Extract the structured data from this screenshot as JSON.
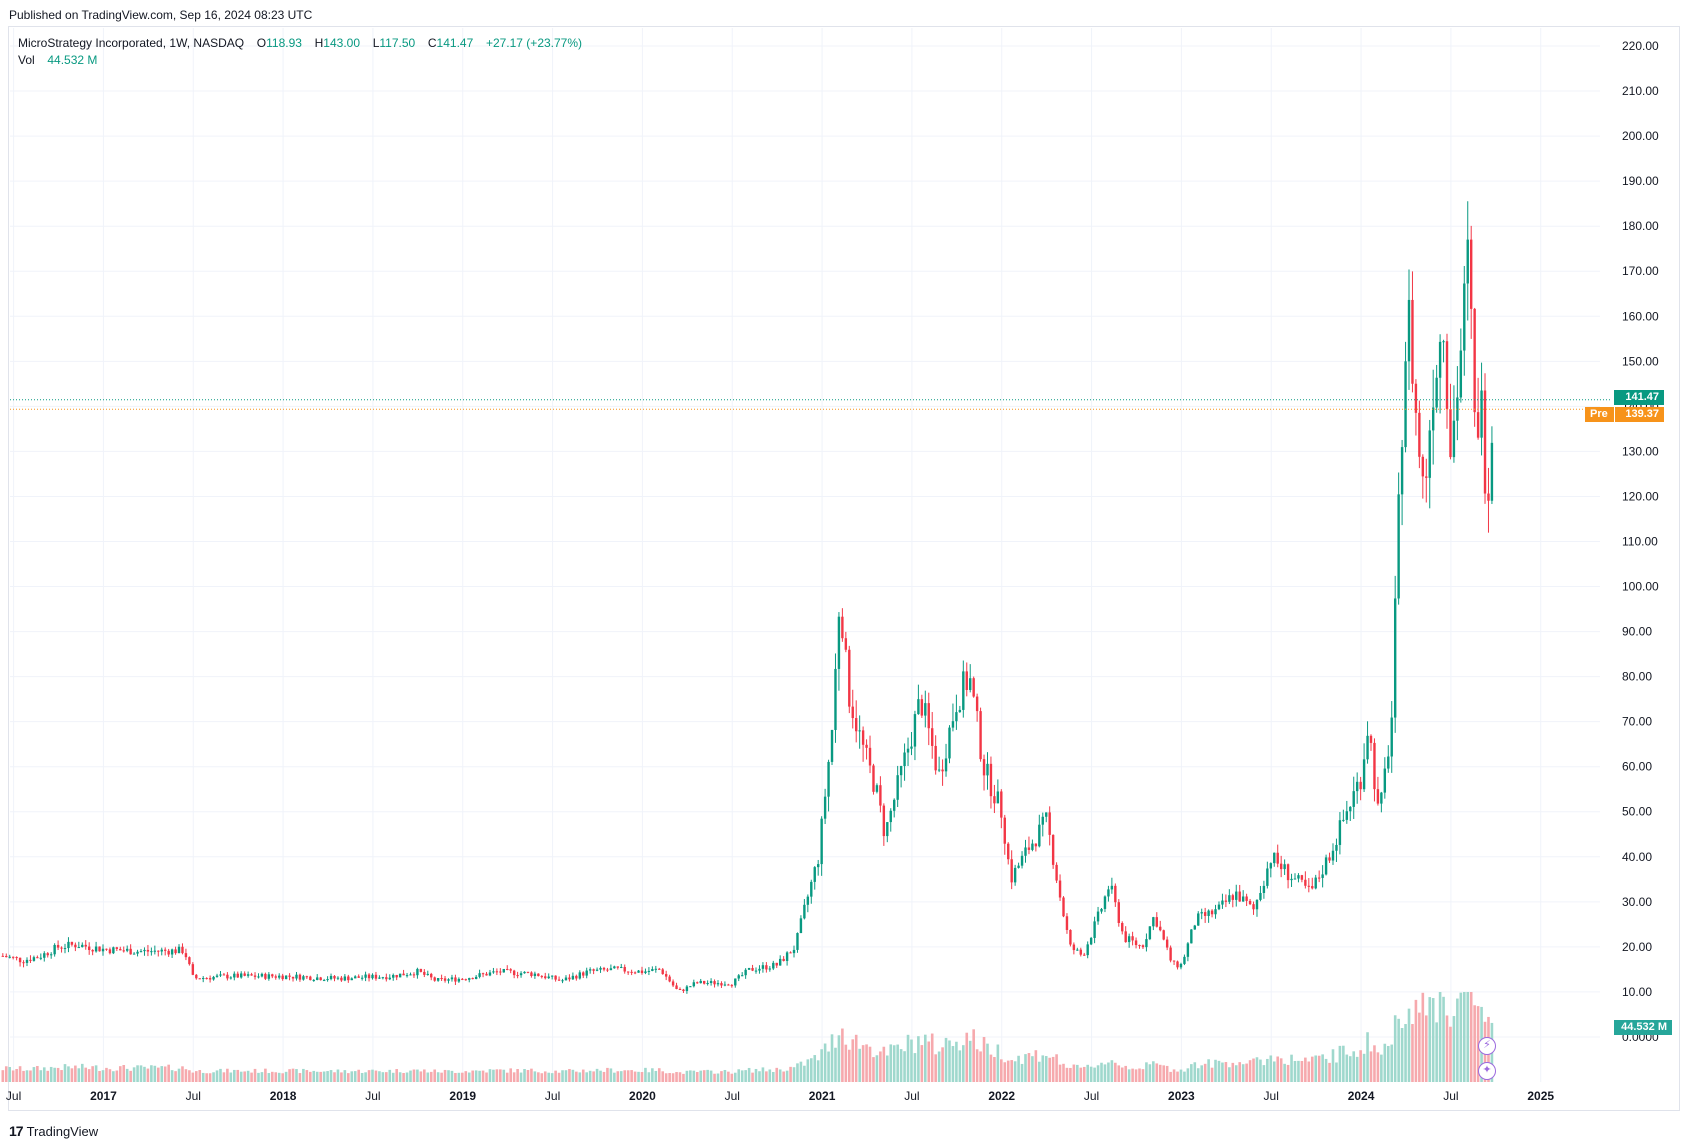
{
  "header": {
    "published": "Published on TradingView.com, Sep 16, 2024 08:23 UTC"
  },
  "legend": {
    "symbol": "MicroStrategy Incorporated, 1W, NASDAQ",
    "o_label": "O",
    "o_value": "118.93",
    "h_label": "H",
    "h_value": "143.00",
    "l_label": "L",
    "l_value": "117.50",
    "c_label": "C",
    "c_value": "141.47",
    "change": "+27.17 (+23.77%)",
    "vol_label": "Vol",
    "vol_value": "44.532 M"
  },
  "tags": {
    "last_price": "141.47",
    "pre_label": "Pre",
    "pre_price": "139.37",
    "volume": "44.532 M"
  },
  "footer": {
    "brand": "TradingView",
    "logo_glyph": "17"
  },
  "colors": {
    "up": "#089981",
    "down": "#f23645",
    "vol_up": "#9fd8cd",
    "vol_down": "#f6a9ad",
    "pre": "#f7931a",
    "grid": "#f0f3fa"
  },
  "chart_data": {
    "type": "candlestick",
    "interval": "1W",
    "y_axis": {
      "ticks": [
        "220.00",
        "210.00",
        "200.00",
        "190.00",
        "180.00",
        "170.00",
        "160.00",
        "150.00",
        "140.00",
        "130.00",
        "120.00",
        "110.00",
        "100.00",
        "90.00",
        "80.00",
        "70.00",
        "60.00",
        "50.00",
        "40.00",
        "30.00",
        "20.00",
        "10.00",
        "0.0000"
      ],
      "range": [
        -10,
        224
      ]
    },
    "x_axis": {
      "ticks": [
        {
          "label": "Jul",
          "t": 2016.5
        },
        {
          "label": "2017",
          "t": 2017.0
        },
        {
          "label": "Jul",
          "t": 2017.5
        },
        {
          "label": "2018",
          "t": 2018.0
        },
        {
          "label": "Jul",
          "t": 2018.5
        },
        {
          "label": "2019",
          "t": 2019.0
        },
        {
          "label": "Jul",
          "t": 2019.5
        },
        {
          "label": "2020",
          "t": 2020.0
        },
        {
          "label": "Jul",
          "t": 2020.5
        },
        {
          "label": "2021",
          "t": 2021.0
        },
        {
          "label": "Jul",
          "t": 2021.5
        },
        {
          "label": "2022",
          "t": 2022.0
        },
        {
          "label": "Jul",
          "t": 2022.5
        },
        {
          "label": "2023",
          "t": 2023.0
        },
        {
          "label": "Jul",
          "t": 2023.5
        },
        {
          "label": "2024",
          "t": 2024.0
        },
        {
          "label": "Jul",
          "t": 2024.5
        },
        {
          "label": "2025",
          "t": 2025.0
        }
      ],
      "range": [
        2016.48,
        2025.33
      ]
    },
    "last_price": 141.47,
    "pre_price": 139.37,
    "price_path": [
      [
        2016.44,
        18
      ],
      [
        2016.55,
        17
      ],
      [
        2016.65,
        18
      ],
      [
        2016.75,
        20
      ],
      [
        2016.85,
        20.5
      ],
      [
        2017.0,
        19.5
      ],
      [
        2017.2,
        19
      ],
      [
        2017.45,
        19.2
      ],
      [
        2017.5,
        13
      ],
      [
        2017.7,
        13.5
      ],
      [
        2018.0,
        13.5
      ],
      [
        2018.3,
        13
      ],
      [
        2018.6,
        13.5
      ],
      [
        2018.75,
        14.5
      ],
      [
        2018.85,
        12.5
      ],
      [
        2019.0,
        13
      ],
      [
        2019.2,
        14.5
      ],
      [
        2019.4,
        14
      ],
      [
        2019.55,
        12.5
      ],
      [
        2019.7,
        14.5
      ],
      [
        2019.85,
        15
      ],
      [
        2020.0,
        14.5
      ],
      [
        2020.1,
        15
      ],
      [
        2020.2,
        10
      ],
      [
        2020.3,
        12
      ],
      [
        2020.5,
        12
      ],
      [
        2020.6,
        15
      ],
      [
        2020.75,
        16
      ],
      [
        2020.85,
        20
      ],
      [
        2020.9,
        28
      ],
      [
        2020.98,
        40
      ],
      [
        2021.02,
        55
      ],
      [
        2021.06,
        70
      ],
      [
        2021.1,
        100
      ],
      [
        2021.14,
        78
      ],
      [
        2021.22,
        65
      ],
      [
        2021.3,
        55
      ],
      [
        2021.35,
        45
      ],
      [
        2021.45,
        60
      ],
      [
        2021.55,
        75
      ],
      [
        2021.65,
        58
      ],
      [
        2021.75,
        75
      ],
      [
        2021.82,
        80
      ],
      [
        2021.9,
        60
      ],
      [
        2022.0,
        50
      ],
      [
        2022.05,
        35
      ],
      [
        2022.15,
        42
      ],
      [
        2022.25,
        48
      ],
      [
        2022.33,
        30
      ],
      [
        2022.38,
        20
      ],
      [
        2022.45,
        18
      ],
      [
        2022.55,
        28
      ],
      [
        2022.6,
        34
      ],
      [
        2022.68,
        22
      ],
      [
        2022.78,
        20
      ],
      [
        2022.85,
        27
      ],
      [
        2022.95,
        16
      ],
      [
        2023.0,
        16
      ],
      [
        2023.08,
        26
      ],
      [
        2023.2,
        28
      ],
      [
        2023.3,
        32
      ],
      [
        2023.4,
        28
      ],
      [
        2023.5,
        40
      ],
      [
        2023.6,
        36
      ],
      [
        2023.72,
        32
      ],
      [
        2023.82,
        40
      ],
      [
        2023.9,
        48
      ],
      [
        2024.0,
        58
      ],
      [
        2024.04,
        70
      ],
      [
        2024.1,
        48
      ],
      [
        2024.17,
        70
      ],
      [
        2024.2,
        105
      ],
      [
        2024.24,
        150
      ],
      [
        2024.27,
        160
      ],
      [
        2024.3,
        140
      ],
      [
        2024.35,
        120
      ],
      [
        2024.4,
        145
      ],
      [
        2024.46,
        160
      ],
      [
        2024.5,
        130
      ],
      [
        2024.55,
        150
      ],
      [
        2024.6,
        175
      ],
      [
        2024.63,
        135
      ],
      [
        2024.67,
        140
      ],
      [
        2024.7,
        120
      ],
      [
        2024.74,
        141.47
      ]
    ],
    "volume_scale": "relative"
  }
}
